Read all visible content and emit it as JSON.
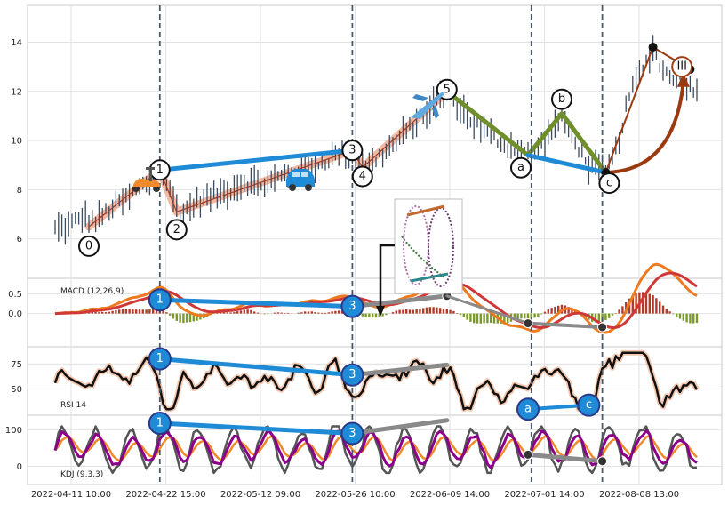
{
  "chart_data": {
    "type": "line",
    "title": "",
    "x_tick_labels": [
      "2022-04-11 10:00",
      "2022-04-22 15:00",
      "2022-05-12 09:00",
      "2022-05-26 10:00",
      "2022-06-09 14:00",
      "2022-07-01 14:00",
      "2022-08-08 13:00"
    ],
    "grid": true,
    "panels": [
      {
        "name": "price",
        "label": "",
        "ylim": [
          4.4,
          15.5
        ],
        "yticks": [
          6,
          8,
          10,
          12,
          14
        ]
      },
      {
        "name": "macd",
        "label": "MACD (12,26,9)",
        "ylim": [
          -0.85,
          0.9
        ],
        "yticks": [
          0.0,
          0.5
        ]
      },
      {
        "name": "rsi",
        "label": "RSI 14",
        "ylim": [
          24,
          92
        ],
        "yticks": [
          50,
          75
        ]
      },
      {
        "name": "kdj",
        "label": "KDJ (9,3,3)",
        "ylim": [
          -50,
          140
        ],
        "yticks": [
          0,
          100
        ]
      }
    ],
    "price_series": {
      "name": "",
      "color": "#3b4a5c",
      "keypoints": [
        [
          0,
          6.4
        ],
        [
          4,
          6.5
        ],
        [
          8,
          6.9
        ],
        [
          12,
          6.7
        ],
        [
          16,
          7.2
        ],
        [
          22,
          7.7
        ],
        [
          28,
          8.4
        ],
        [
          31,
          8.9
        ],
        [
          34,
          7.9
        ],
        [
          37,
          7.0
        ],
        [
          42,
          7.5
        ],
        [
          50,
          7.9
        ],
        [
          56,
          8.3
        ],
        [
          62,
          8.2
        ],
        [
          68,
          8.6
        ],
        [
          74,
          8.8
        ],
        [
          80,
          9.2
        ],
        [
          86,
          9.6
        ],
        [
          89,
          9.4
        ],
        [
          92,
          8.9
        ],
        [
          100,
          9.8
        ],
        [
          108,
          10.9
        ],
        [
          114,
          11.8
        ],
        [
          116,
          12.0
        ],
        [
          122,
          11.0
        ],
        [
          128,
          10.3
        ],
        [
          134,
          9.8
        ],
        [
          138,
          9.6
        ],
        [
          141,
          9.35
        ],
        [
          146,
          10.2
        ],
        [
          150,
          11.0
        ],
        [
          154,
          10.0
        ],
        [
          158,
          9.0
        ],
        [
          163,
          8.7
        ],
        [
          166,
          9.6
        ],
        [
          170,
          11.8
        ],
        [
          174,
          12.9
        ],
        [
          177,
          13.8
        ],
        [
          180,
          12.8
        ],
        [
          184,
          12.6
        ],
        [
          188,
          12.2
        ]
      ]
    },
    "wave_points": [
      {
        "label": "0",
        "x": 10,
        "y": 6.5
      },
      {
        "label": "1",
        "x": 31,
        "y": 8.8
      },
      {
        "label": "2",
        "x": 36,
        "y": 7.1
      },
      {
        "label": "3",
        "x": 88,
        "y": 9.6
      },
      {
        "label": "4",
        "x": 91,
        "y": 8.9
      },
      {
        "label": "5",
        "x": 116,
        "y": 12.0
      },
      {
        "label": "a",
        "x": 140,
        "y": 9.4
      },
      {
        "label": "b",
        "x": 150,
        "y": 11.1
      },
      {
        "label": "c",
        "x": 163,
        "y": 8.7
      },
      {
        "label": "III",
        "x": 184,
        "y": 13.0
      }
    ],
    "divergence_markers": {
      "macd": [
        {
          "label": "1",
          "x": 31,
          "y": 0.35
        },
        {
          "label": "3",
          "x": 88,
          "y": 0.18
        }
      ],
      "rsi": [
        {
          "label": "1",
          "x": 31,
          "y": 80
        },
        {
          "label": "3",
          "x": 88,
          "y": 64
        },
        {
          "label": "a",
          "x": 140,
          "y": 30
        },
        {
          "label": "c",
          "x": 158,
          "y": 34
        }
      ],
      "kdj": [
        {
          "label": "1",
          "x": 31,
          "y": 118
        },
        {
          "label": "3",
          "x": 88,
          "y": 90
        }
      ]
    },
    "vertical_lines_x": [
      31,
      88,
      141,
      162
    ],
    "series_colors": {
      "macd": "#ee7a20",
      "signal": "#d03838",
      "rsi": "#111111",
      "kdj_k": "#8a008a",
      "kdj_d": "#ee8a2a",
      "kdj_j": "#555555",
      "impulse": "#f4b8a0",
      "correction": "#6f8f2a",
      "trend": "#1f8ad6",
      "gray": "#8a8a8a",
      "projection": "#9a3a10"
    }
  }
}
